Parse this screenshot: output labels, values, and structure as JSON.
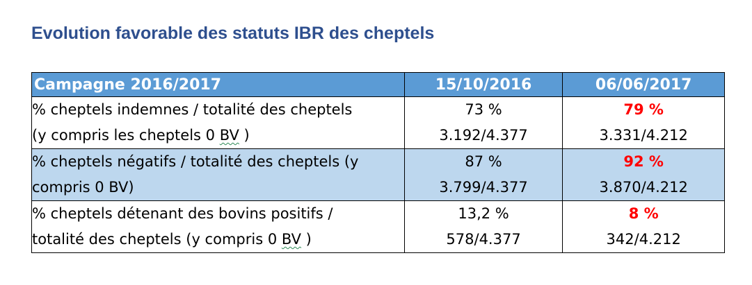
{
  "title": "Evolution favorable des statuts IBR des cheptels",
  "table": {
    "header": {
      "label": "Campagne 2016/2017",
      "date1": "15/10/2016",
      "date2": "06/06/2017"
    },
    "rows": [
      {
        "label_line1": "% cheptels indemnes / totalité des cheptels",
        "label_line2_pre": "(y compris les cheptels 0 ",
        "label_line2_mark": "BV",
        "label_line2_post": " )",
        "d1_pct": "73 %",
        "d1_ratio": "3.192/4.377",
        "d2_pct": "79 %",
        "d2_ratio": "3.331/4.212"
      },
      {
        "label_line1": "% cheptels négatifs / totalité des cheptels (y",
        "label_line2": "compris 0 BV)",
        "d1_pct": "87 %",
        "d1_ratio": "3.799/4.377",
        "d2_pct": "92 %",
        "d2_ratio": "3.870/4.212"
      },
      {
        "label_line1": "% cheptels détenant des bovins positifs  /",
        "label_line2_pre": "totalité des cheptels (y compris 0 ",
        "label_line2_mark": "BV",
        "label_line2_post": " )",
        "d1_pct": "13,2 %",
        "d1_ratio": "578/4.377",
        "d2_pct": "8 %",
        "d2_ratio": "342/4.212"
      }
    ]
  },
  "colors": {
    "title": "#2e4f8e",
    "header_bg": "#5b9bd5",
    "shaded_row_bg": "#bdd7ee",
    "highlight_value": "#ff0000"
  }
}
